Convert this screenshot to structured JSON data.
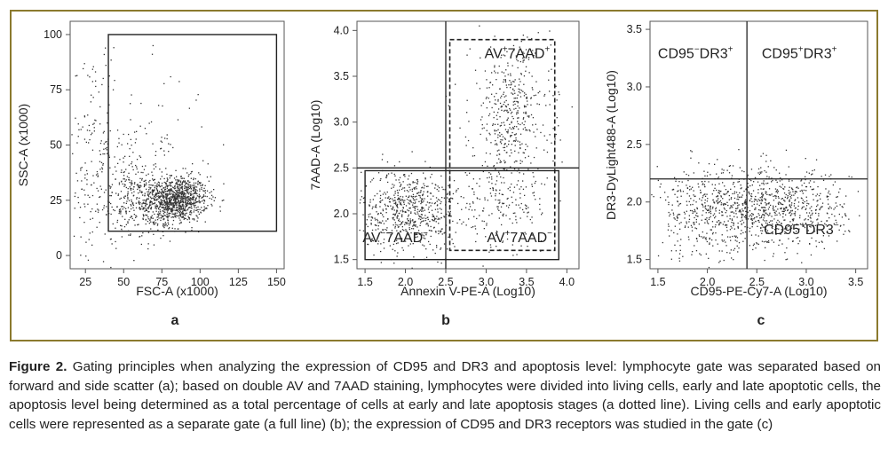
{
  "figure": {
    "caption_label": "Figure 2.",
    "caption_text": "Gating principles when analyzing the expression of CD95 and DR3 and apoptosis level: lymphocyte gate was separated based on forward and side scatter (a); based on double AV and 7AAD staining, lymphocytes were divided into living cells, early and late apoptotic cells, the apoptosis level being determined as a total percentage of cells at early and late apoptosis stages (a dotted line). Living cells and early apoptotic cells were represented as a separate gate (a full line) (b); the expression of CD95 and DR3 receptors was studied in the gate (c)",
    "frame_color": "#8b7a2e"
  },
  "chart_data": [
    {
      "panel": "a",
      "type": "scatter",
      "xlabel": "FSC-A  (x1000)",
      "ylabel": "SSC-A  (x1000)",
      "xlim": [
        15,
        155
      ],
      "ylim": [
        -6,
        106
      ],
      "xticks": [
        25,
        50,
        75,
        100,
        125,
        150
      ],
      "yticks": [
        0,
        25,
        50,
        75,
        100
      ],
      "x_ticklabels": [
        "25",
        "50",
        "75",
        "100",
        "125",
        "150"
      ],
      "y_ticklabels": [
        "0",
        "25",
        "50",
        "75",
        "100"
      ],
      "gates": [
        {
          "shape": "rectangle",
          "style": "solid",
          "x": [
            40,
            150
          ],
          "y": [
            11,
            100
          ]
        }
      ],
      "populations": [
        {
          "center": [
            85,
            26
          ],
          "spread": [
            10,
            5
          ],
          "n": 900
        },
        {
          "center": [
            70,
            22
          ],
          "spread": [
            14,
            6
          ],
          "n": 300
        },
        {
          "center": [
            55,
            32
          ],
          "spread": [
            8,
            10
          ],
          "n": 160
        },
        {
          "center": [
            65,
            45
          ],
          "spread": [
            20,
            20
          ],
          "n": 110
        },
        {
          "center": [
            30,
            40
          ],
          "spread": [
            8,
            30
          ],
          "n": 170
        }
      ]
    },
    {
      "panel": "b",
      "type": "scatter",
      "xlabel": "Annexin V-PE-A  (Log10)",
      "ylabel": "7AAD-A  (Log10)",
      "xlim": [
        1.4,
        4.15
      ],
      "ylim": [
        1.4,
        4.1
      ],
      "xticks": [
        1.5,
        2.0,
        2.5,
        3.0,
        3.5,
        4.0
      ],
      "yticks": [
        1.5,
        2.0,
        2.5,
        3.0,
        3.5,
        4.0
      ],
      "x_ticklabels": [
        "1.5",
        "2.0",
        "2.5",
        "3.0",
        "3.5",
        "4.0"
      ],
      "y_ticklabels": [
        "1.5",
        "2.0",
        "2.5",
        "3.0",
        "3.5",
        "4.0"
      ],
      "quadrant_lines": {
        "x": 2.5,
        "y": 2.5
      },
      "gates": [
        {
          "shape": "rectangle",
          "style": "solid",
          "x": [
            1.5,
            3.9
          ],
          "y": [
            1.5,
            2.47
          ]
        },
        {
          "shape": "rectangle",
          "style": "dashed",
          "x": [
            2.55,
            3.85
          ],
          "y": [
            1.6,
            3.9
          ]
        }
      ],
      "quadrant_labels": [
        {
          "sup_a": "+",
          "sup_b": "+",
          "pos": "upper-right"
        },
        {
          "sup_a": "−",
          "sup_b": "−",
          "pos": "lower-left"
        },
        {
          "sup_a": "+",
          "sup_b": "−",
          "pos": "lower-right"
        }
      ],
      "populations": [
        {
          "center": [
            2.05,
            2.05
          ],
          "spread": [
            0.3,
            0.22
          ],
          "n": 650
        },
        {
          "center": [
            3.3,
            3.1
          ],
          "spread": [
            0.25,
            0.4
          ],
          "n": 450
        },
        {
          "center": [
            3.2,
            2.1
          ],
          "spread": [
            0.3,
            0.25
          ],
          "n": 200
        }
      ]
    },
    {
      "panel": "c",
      "type": "scatter",
      "xlabel": "CD95-PE-Cy7-A  (Log10)",
      "ylabel": "DR3-DyLight488-A  (Log10)",
      "xlim": [
        1.42,
        3.62
      ],
      "ylim": [
        1.42,
        3.57
      ],
      "xticks": [
        1.5,
        2.0,
        2.5,
        3.0,
        3.5
      ],
      "yticks": [
        1.5,
        2.0,
        2.5,
        3.0,
        3.5
      ],
      "x_ticklabels": [
        "1.5",
        "2.0",
        "2.5",
        "3.0",
        "3.5"
      ],
      "y_ticklabels": [
        "1.5",
        "2.0",
        "2.5",
        "3.0",
        "3.5"
      ],
      "quadrant_lines": {
        "x": 2.4,
        "y": 2.2
      },
      "quadrant_labels": [
        {
          "sup_a": "−",
          "sup_b": "+",
          "pos": "upper-left"
        },
        {
          "sup_a": "+",
          "sup_b": "+",
          "pos": "upper-right"
        },
        {
          "sup_a": "+",
          "sup_b": "−",
          "pos": "lower-right"
        }
      ],
      "populations": [
        {
          "center": [
            2.65,
            1.95
          ],
          "spread": [
            0.38,
            0.17
          ],
          "n": 800
        },
        {
          "center": [
            2.0,
            1.9
          ],
          "spread": [
            0.28,
            0.2
          ],
          "n": 350
        }
      ]
    }
  ],
  "panel_labels": [
    "a",
    "b",
    "c"
  ],
  "quadrant_text": {
    "av": "AV",
    "aad": "7AAD",
    "cd95": "CD95",
    "dr3": "DR3"
  }
}
